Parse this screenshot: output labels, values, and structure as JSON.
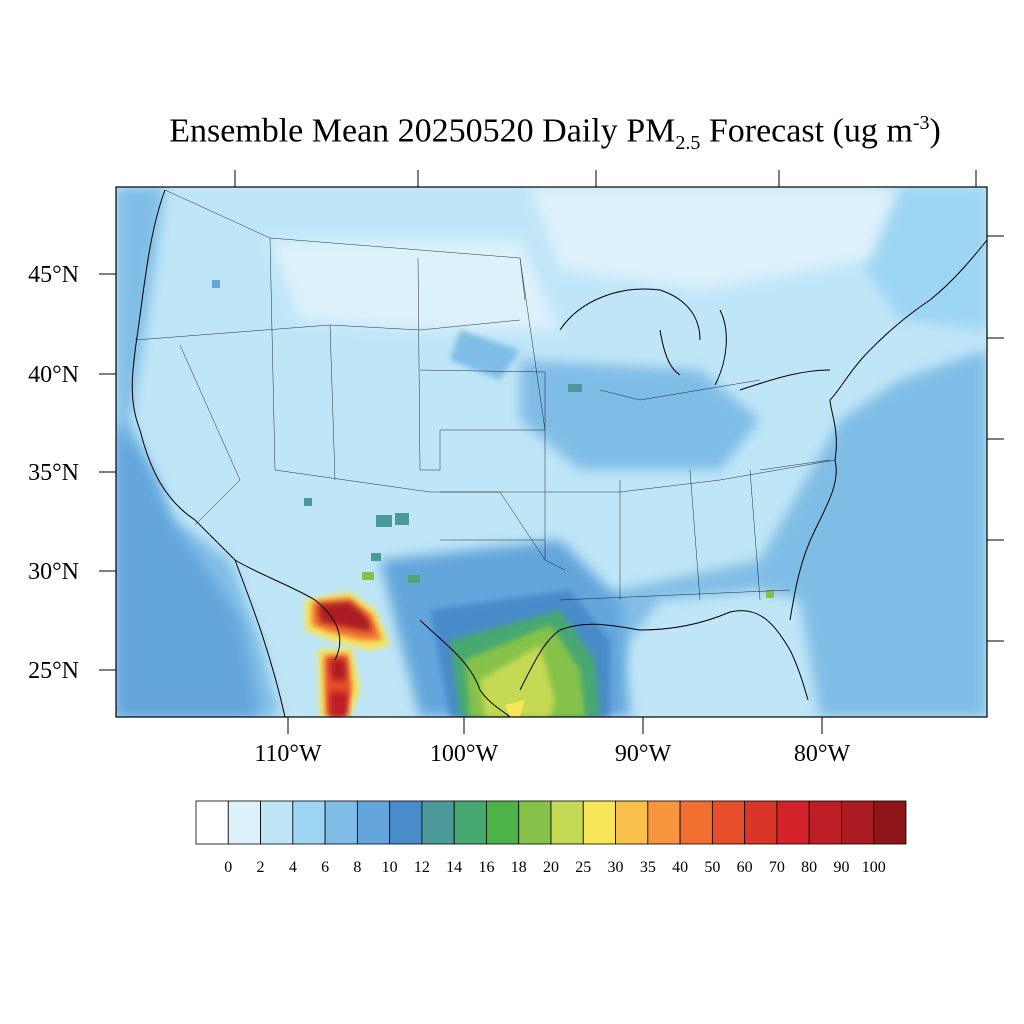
{
  "title": {
    "main": "Ensemble Mean 20250520 Daily PM",
    "sub": "2.5",
    "after": " Forecast (ug m",
    "sup": "-3",
    "close": ")"
  },
  "lat_labels": [
    "45°N",
    "40°N",
    "35°N",
    "30°N",
    "25°N"
  ],
  "lon_labels": [
    "110°W",
    "100°W",
    "90°W",
    "80°W"
  ],
  "colorbar": {
    "levels": [
      "0",
      "2",
      "4",
      "6",
      "8",
      "10",
      "12",
      "14",
      "16",
      "18",
      "20",
      "25",
      "30",
      "35",
      "40",
      "50",
      "60",
      "70",
      "80",
      "90",
      "100"
    ],
    "colors": [
      "#ffffff",
      "#ddf1fb",
      "#bfe6f7",
      "#9dd6f3",
      "#80bde6",
      "#64a6dc",
      "#4a8bc9",
      "#4a9a9a",
      "#47a872",
      "#4db348",
      "#86c24a",
      "#c6d955",
      "#f7e657",
      "#f8bf4b",
      "#f7963e",
      "#f06f31",
      "#e64d2b",
      "#da3526",
      "#d32229",
      "#be1e26",
      "#ab1c22",
      "#8e1519"
    ]
  }
}
